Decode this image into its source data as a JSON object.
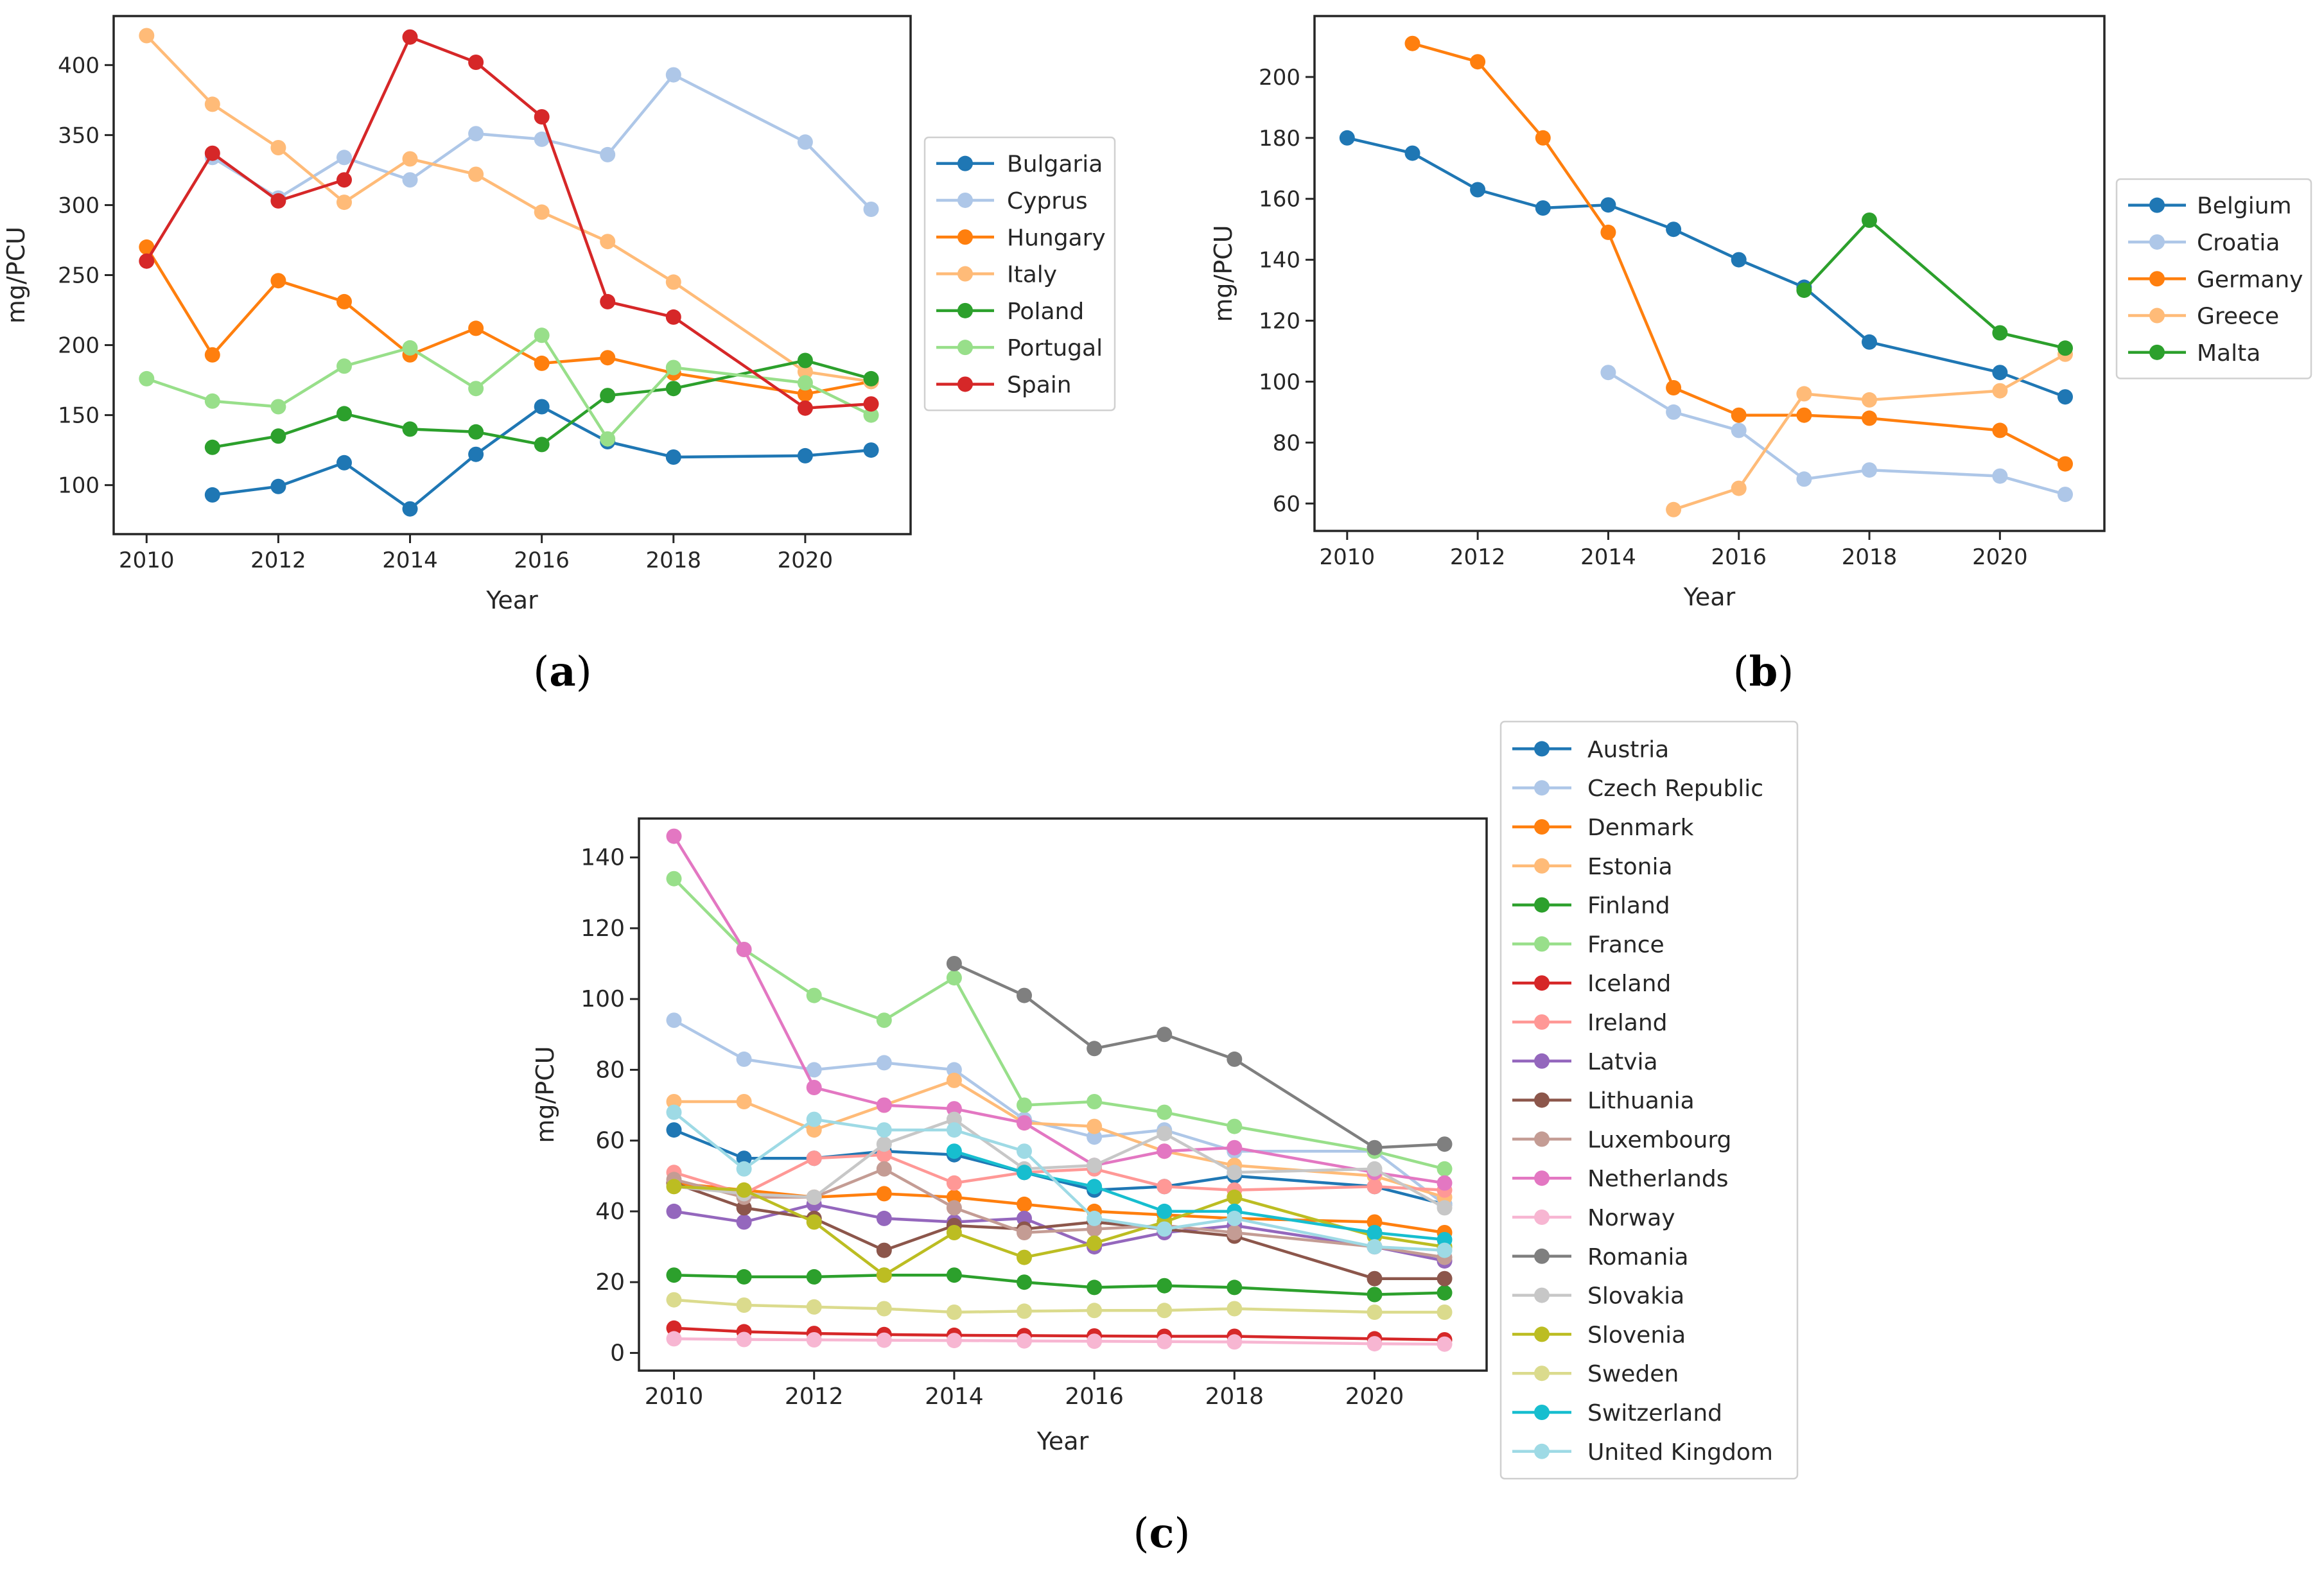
{
  "figure": {
    "panel_labels": [
      {
        "open": "(",
        "letter": "a",
        "close": ")"
      },
      {
        "open": "(",
        "letter": "b",
        "close": ")"
      },
      {
        "open": "(",
        "letter": "c",
        "close": ")"
      }
    ]
  },
  "chart_data": [
    {
      "type": "line",
      "title": "",
      "panel": "a",
      "xlabel": "Year",
      "ylabel": "mg/PCU",
      "xlim": [
        2009.5,
        2021.6
      ],
      "ylim": [
        65,
        435
      ],
      "xticks": [
        2010,
        2012,
        2014,
        2016,
        2018,
        2020
      ],
      "yticks": [
        100,
        150,
        200,
        250,
        300,
        350,
        400
      ],
      "grid": false,
      "legend_position": "right",
      "series": [
        {
          "name": "Bulgaria",
          "color": "#1f77b4",
          "x": [
            2011,
            2012,
            2013,
            2014,
            2015,
            2016,
            2017,
            2018,
            2020,
            2021
          ],
          "y": [
            93,
            99,
            116,
            83,
            122,
            156,
            131,
            120,
            121,
            125
          ]
        },
        {
          "name": "Cyprus",
          "color": "#aec7e8",
          "x": [
            2011,
            2012,
            2013,
            2014,
            2015,
            2016,
            2017,
            2018,
            2020,
            2021
          ],
          "y": [
            334,
            305,
            334,
            318,
            351,
            347,
            336,
            393,
            345,
            297
          ]
        },
        {
          "name": "Hungary",
          "color": "#ff7f0e",
          "x": [
            2010,
            2011,
            2012,
            2013,
            2014,
            2015,
            2016,
            2017,
            2018,
            2020,
            2021
          ],
          "y": [
            270,
            193,
            246,
            231,
            193,
            212,
            187,
            191,
            180,
            165,
            174
          ]
        },
        {
          "name": "Italy",
          "color": "#ffbb78",
          "x": [
            2010,
            2011,
            2012,
            2013,
            2014,
            2015,
            2016,
            2017,
            2018,
            2020,
            2021
          ],
          "y": [
            421,
            372,
            341,
            302,
            333,
            322,
            295,
            274,
            245,
            181,
            174
          ]
        },
        {
          "name": "Poland",
          "color": "#2ca02c",
          "x": [
            2011,
            2012,
            2013,
            2014,
            2015,
            2016,
            2017,
            2018,
            2020,
            2021
          ],
          "y": [
            127,
            135,
            151,
            140,
            138,
            129,
            164,
            169,
            189,
            176
          ]
        },
        {
          "name": "Portugal",
          "color": "#98df8a",
          "x": [
            2010,
            2011,
            2012,
            2013,
            2014,
            2015,
            2016,
            2017,
            2018,
            2020,
            2021
          ],
          "y": [
            176,
            160,
            156,
            185,
            198,
            169,
            207,
            133,
            184,
            173,
            150
          ]
        },
        {
          "name": "Spain",
          "color": "#d62728",
          "x": [
            2010,
            2011,
            2012,
            2013,
            2014,
            2015,
            2016,
            2017,
            2018,
            2020,
            2021
          ],
          "y": [
            260,
            337,
            303,
            318,
            420,
            402,
            363,
            231,
            220,
            155,
            158
          ]
        }
      ]
    },
    {
      "type": "line",
      "title": "",
      "panel": "b",
      "xlabel": "Year",
      "ylabel": "mg/PCU",
      "xlim": [
        2009.5,
        2021.6
      ],
      "ylim": [
        51,
        220
      ],
      "xticks": [
        2010,
        2012,
        2014,
        2016,
        2018,
        2020
      ],
      "yticks": [
        60,
        80,
        100,
        120,
        140,
        160,
        180,
        200
      ],
      "grid": false,
      "legend_position": "right",
      "series": [
        {
          "name": "Belgium",
          "color": "#1f77b4",
          "x": [
            2010,
            2011,
            2012,
            2013,
            2014,
            2015,
            2016,
            2017,
            2018,
            2020,
            2021
          ],
          "y": [
            180,
            175,
            163,
            157,
            158,
            150,
            140,
            131,
            113,
            103,
            95
          ]
        },
        {
          "name": "Croatia",
          "color": "#aec7e8",
          "x": [
            2014,
            2015,
            2016,
            2017,
            2018,
            2020,
            2021
          ],
          "y": [
            103,
            90,
            84,
            68,
            71,
            69,
            63
          ]
        },
        {
          "name": "Germany",
          "color": "#ff7f0e",
          "x": [
            2011,
            2012,
            2013,
            2014,
            2015,
            2016,
            2017,
            2018,
            2020,
            2021
          ],
          "y": [
            211,
            205,
            180,
            149,
            98,
            89,
            89,
            88,
            84,
            73
          ]
        },
        {
          "name": "Greece",
          "color": "#ffbb78",
          "x": [
            2015,
            2016,
            2017,
            2018,
            2020,
            2021
          ],
          "y": [
            58,
            65,
            96,
            94,
            97,
            109
          ]
        },
        {
          "name": "Malta",
          "color": "#2ca02c",
          "x": [
            2017,
            2018,
            2020,
            2021
          ],
          "y": [
            130,
            153,
            116,
            111
          ]
        }
      ]
    },
    {
      "type": "line",
      "title": "",
      "panel": "c",
      "xlabel": "Year",
      "ylabel": "mg/PCU",
      "xlim": [
        2009.5,
        2021.6
      ],
      "ylim": [
        -5,
        151
      ],
      "xticks": [
        2010,
        2012,
        2014,
        2016,
        2018,
        2020
      ],
      "yticks": [
        0,
        20,
        40,
        60,
        80,
        100,
        120,
        140
      ],
      "grid": false,
      "legend_position": "upper right, outside",
      "series": [
        {
          "name": "Austria",
          "color": "#1f77b4",
          "x": [
            2010,
            2011,
            2012,
            2013,
            2014,
            2015,
            2016,
            2017,
            2018,
            2020,
            2021
          ],
          "y": [
            63,
            55,
            55,
            57,
            56,
            51,
            46,
            47,
            50,
            47,
            42
          ]
        },
        {
          "name": "Czech Republic",
          "color": "#aec7e8",
          "x": [
            2010,
            2011,
            2012,
            2013,
            2014,
            2015,
            2016,
            2017,
            2018,
            2020,
            2021
          ],
          "y": [
            94,
            83,
            80,
            82,
            80,
            66,
            61,
            63,
            57,
            57,
            42
          ]
        },
        {
          "name": "Denmark",
          "color": "#ff7f0e",
          "x": [
            2010,
            2011,
            2012,
            2013,
            2014,
            2015,
            2016,
            2017,
            2018,
            2020,
            2021
          ],
          "y": [
            48,
            46,
            44,
            45,
            44,
            42,
            40,
            39,
            38,
            37,
            34
          ]
        },
        {
          "name": "Estonia",
          "color": "#ffbb78",
          "x": [
            2010,
            2011,
            2012,
            2013,
            2014,
            2015,
            2016,
            2017,
            2018,
            2020,
            2021
          ],
          "y": [
            71,
            71,
            63,
            70,
            77,
            65,
            64,
            57,
            53,
            50,
            44
          ]
        },
        {
          "name": "Finland",
          "color": "#2ca02c",
          "x": [
            2010,
            2011,
            2012,
            2013,
            2014,
            2015,
            2016,
            2017,
            2018,
            2020,
            2021
          ],
          "y": [
            22,
            21.5,
            21.5,
            22,
            22,
            20,
            18.5,
            19,
            18.5,
            16.5,
            17
          ]
        },
        {
          "name": "France",
          "color": "#98df8a",
          "x": [
            2010,
            2011,
            2012,
            2013,
            2014,
            2015,
            2016,
            2017,
            2018,
            2020,
            2021
          ],
          "y": [
            134,
            114,
            101,
            94,
            106,
            70,
            71,
            68,
            64,
            57,
            52
          ]
        },
        {
          "name": "Iceland",
          "color": "#d62728",
          "x": [
            2010,
            2011,
            2012,
            2013,
            2014,
            2015,
            2016,
            2017,
            2018,
            2020,
            2021
          ],
          "y": [
            7,
            6,
            5.5,
            5.2,
            5,
            4.9,
            4.8,
            4.7,
            4.7,
            4,
            3.7
          ]
        },
        {
          "name": "Ireland",
          "color": "#ff9896",
          "x": [
            2010,
            2011,
            2012,
            2013,
            2014,
            2015,
            2016,
            2017,
            2018,
            2020,
            2021
          ],
          "y": [
            51,
            45,
            55,
            56,
            48,
            51,
            52,
            47,
            46,
            47,
            46
          ]
        },
        {
          "name": "Latvia",
          "color": "#9467bd",
          "x": [
            2010,
            2011,
            2012,
            2013,
            2014,
            2015,
            2016,
            2017,
            2018,
            2020,
            2021
          ],
          "y": [
            40,
            37,
            42,
            38,
            37,
            38,
            30,
            34,
            36,
            30,
            26
          ]
        },
        {
          "name": "Lithuania",
          "color": "#8c564b",
          "x": [
            2010,
            2011,
            2012,
            2013,
            2014,
            2015,
            2016,
            2017,
            2018,
            2020,
            2021
          ],
          "y": [
            48,
            41,
            38,
            29,
            36,
            35,
            37,
            35,
            33,
            21,
            21
          ]
        },
        {
          "name": "Luxembourg",
          "color": "#c49c94",
          "x": [
            2010,
            2011,
            2012,
            2013,
            2014,
            2015,
            2016,
            2017,
            2018,
            2020,
            2021
          ],
          "y": [
            49,
            44,
            44,
            52,
            41,
            34,
            35,
            36,
            34,
            30,
            27
          ]
        },
        {
          "name": "Netherlands",
          "color": "#e377c2",
          "x": [
            2010,
            2011,
            2012,
            2013,
            2014,
            2015,
            2016,
            2017,
            2018,
            2020,
            2021
          ],
          "y": [
            146,
            114,
            75,
            70,
            69,
            65,
            53,
            57,
            58,
            51,
            48
          ]
        },
        {
          "name": "Norway",
          "color": "#f7b6d2",
          "x": [
            2010,
            2011,
            2012,
            2013,
            2014,
            2015,
            2016,
            2017,
            2018,
            2020,
            2021
          ],
          "y": [
            4,
            3.8,
            3.7,
            3.6,
            3.5,
            3.4,
            3.3,
            3.2,
            3.1,
            2.6,
            2.5
          ]
        },
        {
          "name": "Romania",
          "color": "#7f7f7f",
          "x": [
            2014,
            2015,
            2016,
            2017,
            2018,
            2020,
            2021
          ],
          "y": [
            110,
            101,
            86,
            90,
            83,
            58,
            59
          ]
        },
        {
          "name": "Slovakia",
          "color": "#c7c7c7",
          "x": [
            2010,
            2011,
            2012,
            2013,
            2014,
            2015,
            2016,
            2017,
            2018,
            2020,
            2021
          ],
          "y": [
            47,
            45,
            44,
            59,
            66,
            52,
            53,
            62,
            51,
            52,
            41
          ]
        },
        {
          "name": "Slovenia",
          "color": "#bcbd22",
          "x": [
            2010,
            2011,
            2012,
            2013,
            2014,
            2015,
            2016,
            2017,
            2018,
            2020,
            2021
          ],
          "y": [
            47,
            46,
            37,
            22,
            34,
            27,
            31,
            37,
            44,
            33,
            30
          ]
        },
        {
          "name": "Sweden",
          "color": "#dbdb8d",
          "x": [
            2010,
            2011,
            2012,
            2013,
            2014,
            2015,
            2016,
            2017,
            2018,
            2020,
            2021
          ],
          "y": [
            15,
            13.5,
            13,
            12.5,
            11.5,
            11.8,
            12,
            12,
            12.5,
            11.5,
            11.5
          ]
        },
        {
          "name": "Switzerland",
          "color": "#17becf",
          "x": [
            2014,
            2015,
            2016,
            2017,
            2018,
            2020,
            2021
          ],
          "y": [
            57,
            51,
            47,
            40,
            40,
            34,
            32
          ]
        },
        {
          "name": "United Kingdom",
          "color": "#9edae5",
          "x": [
            2010,
            2011,
            2012,
            2013,
            2014,
            2015,
            2016,
            2017,
            2018,
            2020,
            2021
          ],
          "y": [
            68,
            52,
            66,
            63,
            63,
            57,
            38,
            35,
            38,
            30,
            29
          ]
        }
      ]
    }
  ]
}
